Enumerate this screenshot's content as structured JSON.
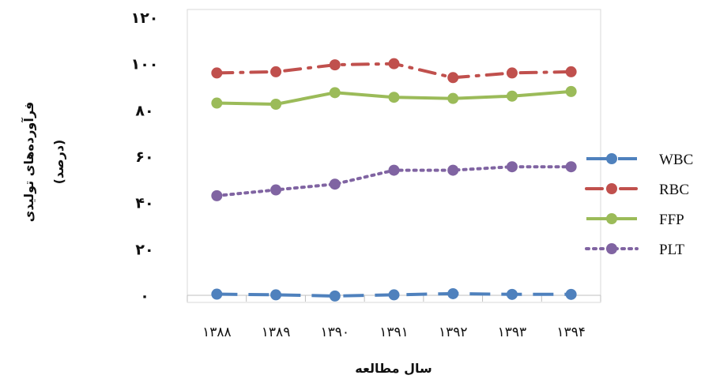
{
  "chart_data": {
    "type": "line",
    "categories": [
      "۱۳۸۸",
      "۱۳۸۹",
      "۱۳۹۰",
      "۱۳۹۱",
      "۱۳۹۲",
      "۱۳۹۳",
      "۱۳۹۴"
    ],
    "y_ticks": [
      "۰",
      "۲۰",
      "۴۰",
      "۶۰",
      "۸۰",
      "۱۰۰",
      "۱۲۰"
    ],
    "ylim": [
      0,
      120
    ],
    "xlabel": "سال مطالعه",
    "ylabel_line1": "فرآورده‌های تولیدی",
    "ylabel_line2": "(درصد)",
    "grid": false,
    "legend_position": "right",
    "series": [
      {
        "name": "WBC",
        "values": [
          0.5,
          0.2,
          -0.3,
          0.2,
          0.7,
          0.4,
          0.4
        ],
        "color": "#4f81bd",
        "dash": "long-dash"
      },
      {
        "name": "RBC",
        "values": [
          96,
          96.5,
          99.5,
          100,
          94,
          96,
          96.5
        ],
        "color": "#c0504d",
        "dash": "dash-dot"
      },
      {
        "name": "FFP",
        "values": [
          83,
          82.5,
          87.5,
          85.5,
          85,
          86,
          88
        ],
        "color": "#9bbb59",
        "dash": "solid"
      },
      {
        "name": "PLT",
        "values": [
          43,
          45.5,
          48,
          54,
          54,
          55.5,
          55.5
        ],
        "color": "#8064a2",
        "dash": "dotted"
      }
    ]
  }
}
